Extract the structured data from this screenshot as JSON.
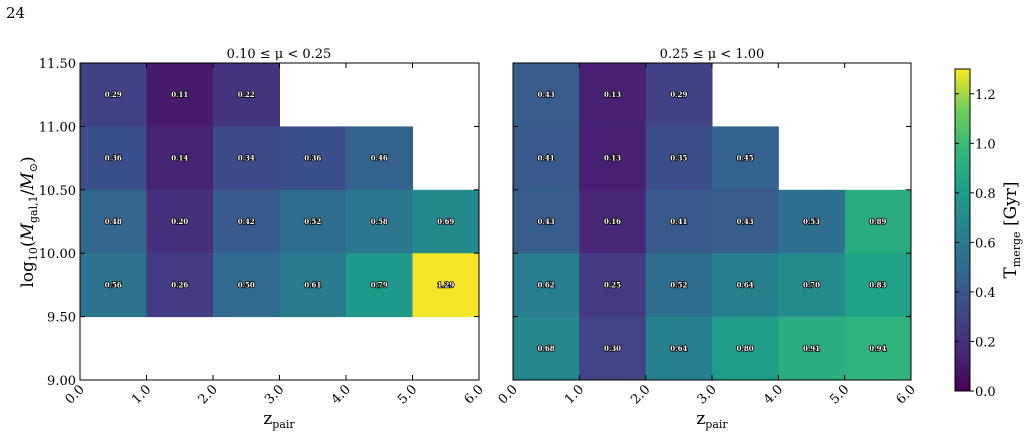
{
  "page_number": "24",
  "colorbar": {
    "label": "T",
    "label_sub": "merge",
    "label_unit": " [Gyr]",
    "vmin": 0.0,
    "vmax": 1.3,
    "ticks": [
      "0.0",
      "0.2",
      "0.4",
      "0.6",
      "0.8",
      "1.0",
      "1.2"
    ],
    "colormap": "viridis"
  },
  "chart_data": [
    {
      "type": "heatmap",
      "title": "0.10 ≤ μ < 0.25",
      "xlabel": "z",
      "xlabel_sub": "pair",
      "ylabel": "log10(Mgal,1/M⊙)",
      "x_edges": [
        0,
        1,
        2,
        3,
        4,
        5,
        6
      ],
      "y_edges": [
        9.0,
        9.5,
        10.0,
        10.5,
        11.0,
        11.5
      ],
      "xlim": [
        0,
        6
      ],
      "ylim": [
        9.0,
        11.5
      ],
      "xticks": [
        "0.0",
        "1.0",
        "2.0",
        "3.0",
        "4.0",
        "5.0",
        "6.0"
      ],
      "yticks": [
        "9.00",
        "9.50",
        "10.00",
        "10.50",
        "11.00",
        "11.50"
      ],
      "cells": [
        {
          "x": 0,
          "y": 11.0,
          "value": 0.29,
          "label": "0.29"
        },
        {
          "x": 1,
          "y": 11.0,
          "value": 0.11,
          "label": "0.11"
        },
        {
          "x": 2,
          "y": 11.0,
          "value": 0.22,
          "label": "0.22"
        },
        {
          "x": 0,
          "y": 10.5,
          "value": 0.36,
          "label": "0.36"
        },
        {
          "x": 1,
          "y": 10.5,
          "value": 0.14,
          "label": "0.14"
        },
        {
          "x": 2,
          "y": 10.5,
          "value": 0.34,
          "label": "0.34"
        },
        {
          "x": 3,
          "y": 10.5,
          "value": 0.36,
          "label": "0.36"
        },
        {
          "x": 4,
          "y": 10.5,
          "value": 0.46,
          "label": "0.46"
        },
        {
          "x": 0,
          "y": 10.0,
          "value": 0.48,
          "label": "0.48"
        },
        {
          "x": 1,
          "y": 10.0,
          "value": 0.2,
          "label": "0.20"
        },
        {
          "x": 2,
          "y": 10.0,
          "value": 0.42,
          "label": "0.42"
        },
        {
          "x": 3,
          "y": 10.0,
          "value": 0.52,
          "label": "0.52"
        },
        {
          "x": 4,
          "y": 10.0,
          "value": 0.58,
          "label": "0.58"
        },
        {
          "x": 5,
          "y": 10.0,
          "value": 0.69,
          "label": "0.69"
        },
        {
          "x": 0,
          "y": 9.5,
          "value": 0.56,
          "label": "0.56"
        },
        {
          "x": 1,
          "y": 9.5,
          "value": 0.26,
          "label": "0.26"
        },
        {
          "x": 2,
          "y": 9.5,
          "value": 0.5,
          "label": "0.50"
        },
        {
          "x": 3,
          "y": 9.5,
          "value": 0.61,
          "label": "0.61"
        },
        {
          "x": 4,
          "y": 9.5,
          "value": 0.79,
          "label": "0.79"
        },
        {
          "x": 5,
          "y": 9.5,
          "value": 1.29,
          "label": "1.29"
        }
      ]
    },
    {
      "type": "heatmap",
      "title": "0.25 ≤ μ < 1.00",
      "xlabel": "z",
      "xlabel_sub": "pair",
      "x_edges": [
        0,
        1,
        2,
        3,
        4,
        5,
        6
      ],
      "y_edges": [
        9.0,
        9.5,
        10.0,
        10.5,
        11.0,
        11.5
      ],
      "xlim": [
        0,
        6
      ],
      "ylim": [
        9.0,
        11.5
      ],
      "xticks": [
        "0.0",
        "1.0",
        "2.0",
        "3.0",
        "4.0",
        "5.0",
        "6.0"
      ],
      "cells": [
        {
          "x": 0,
          "y": 11.0,
          "value": 0.43,
          "label": "0.43"
        },
        {
          "x": 1,
          "y": 11.0,
          "value": 0.13,
          "label": "0.13"
        },
        {
          "x": 2,
          "y": 11.0,
          "value": 0.29,
          "label": "0.29"
        },
        {
          "x": 0,
          "y": 10.5,
          "value": 0.41,
          "label": "0.41"
        },
        {
          "x": 1,
          "y": 10.5,
          "value": 0.13,
          "label": "0.13"
        },
        {
          "x": 2,
          "y": 10.5,
          "value": 0.35,
          "label": "0.35"
        },
        {
          "x": 3,
          "y": 10.5,
          "value": 0.45,
          "label": "0.45"
        },
        {
          "x": 0,
          "y": 10.0,
          "value": 0.43,
          "label": "0.43"
        },
        {
          "x": 1,
          "y": 10.0,
          "value": 0.16,
          "label": "0.16"
        },
        {
          "x": 2,
          "y": 10.0,
          "value": 0.41,
          "label": "0.41"
        },
        {
          "x": 3,
          "y": 10.0,
          "value": 0.43,
          "label": "0.43"
        },
        {
          "x": 4,
          "y": 10.0,
          "value": 0.53,
          "label": "0.53"
        },
        {
          "x": 5,
          "y": 10.0,
          "value": 0.89,
          "label": "0.89"
        },
        {
          "x": 0,
          "y": 9.5,
          "value": 0.62,
          "label": "0.62"
        },
        {
          "x": 1,
          "y": 9.5,
          "value": 0.25,
          "label": "0.25"
        },
        {
          "x": 2,
          "y": 9.5,
          "value": 0.52,
          "label": "0.52"
        },
        {
          "x": 3,
          "y": 9.5,
          "value": 0.64,
          "label": "0.64"
        },
        {
          "x": 4,
          "y": 9.5,
          "value": 0.7,
          "label": "0.70"
        },
        {
          "x": 5,
          "y": 9.5,
          "value": 0.83,
          "label": "0.83"
        },
        {
          "x": 0,
          "y": 9.0,
          "value": 0.68,
          "label": "0.68"
        },
        {
          "x": 1,
          "y": 9.0,
          "value": 0.3,
          "label": "0.30"
        },
        {
          "x": 2,
          "y": 9.0,
          "value": 0.64,
          "label": "0.64"
        },
        {
          "x": 3,
          "y": 9.0,
          "value": 0.8,
          "label": "0.80"
        },
        {
          "x": 4,
          "y": 9.0,
          "value": 0.91,
          "label": "0.91"
        },
        {
          "x": 5,
          "y": 9.0,
          "value": 0.94,
          "label": "0.94"
        }
      ]
    }
  ]
}
